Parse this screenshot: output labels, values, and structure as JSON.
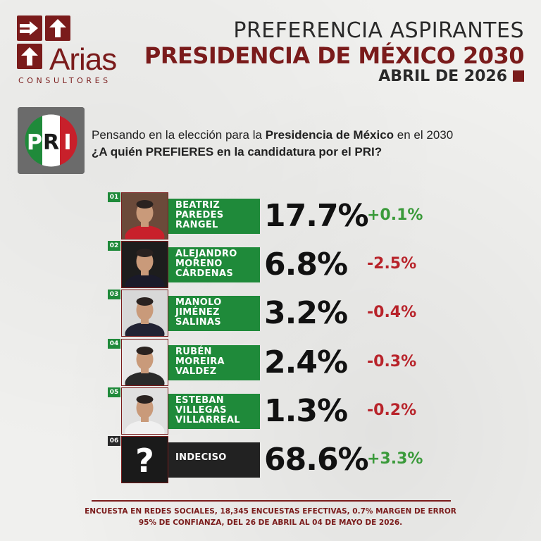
{
  "logo": {
    "brand": "Arias",
    "subtitle": "CONSULTORES",
    "color": "#7a1b1b",
    "icons": [
      "arrow-right-icon",
      "arrow-up-icon",
      "arrow-up-icon"
    ]
  },
  "header": {
    "line1": "PREFERENCIA ASPIRANTES",
    "line2": "PRESIDENCIA DE MÉXICO 2030",
    "line3": "ABRIL DE 2026"
  },
  "party": {
    "name": "PRI",
    "letters": [
      "P",
      "R",
      "I"
    ],
    "colors": {
      "green": "#1f8a3a",
      "white": "#ffffff",
      "red": "#c8202b"
    }
  },
  "question": {
    "line1_prefix": "Pensando en la elección para la ",
    "line1_bold": "Presidencia de México",
    "line1_suffix": " en el 2030",
    "line2": "¿A quién PREFIERES en la candidatura por el PRI?"
  },
  "candidates": [
    {
      "num": "01",
      "name_lines": [
        "BEATRIZ",
        "PAREDES",
        "RANGEL"
      ],
      "pct": "17.7%",
      "delta": "+0.1%",
      "trend": "up"
    },
    {
      "num": "02",
      "name_lines": [
        "ALEJANDRO",
        "MORENO",
        "CÁRDENAS"
      ],
      "pct": "6.8%",
      "delta": "-2.5%",
      "trend": "down"
    },
    {
      "num": "03",
      "name_lines": [
        "MANOLO",
        "JIMÉNEZ",
        "SALINAS"
      ],
      "pct": "3.2%",
      "delta": "-0.4%",
      "trend": "down"
    },
    {
      "num": "04",
      "name_lines": [
        "RUBÉN",
        "MOREIRA",
        "VALDEZ"
      ],
      "pct": "2.4%",
      "delta": "-0.3%",
      "trend": "down"
    },
    {
      "num": "05",
      "name_lines": [
        "ESTEBAN",
        "VILLEGAS",
        "VILLARREAL"
      ],
      "pct": "1.3%",
      "delta": "-0.2%",
      "trend": "down"
    },
    {
      "num": "06",
      "name_lines": [
        "INDECISO"
      ],
      "pct": "68.6%",
      "delta": "+3.3%",
      "trend": "up",
      "undecided": true,
      "icon_text": "?"
    }
  ],
  "colors": {
    "up": "#3a9a3a",
    "down": "#b8232a",
    "label_green": "#1f8a3a",
    "label_dark": "#222222"
  },
  "footer": {
    "line1": "ENCUESTA EN REDES SOCIALES, 18,345 ENCUESTAS EFECTIVAS, 0.7% MARGEN DE ERROR",
    "line2": "95% DE CONFIANZA, DEL 26 DE ABRIL AL 04 DE MAYO DE 2026."
  }
}
